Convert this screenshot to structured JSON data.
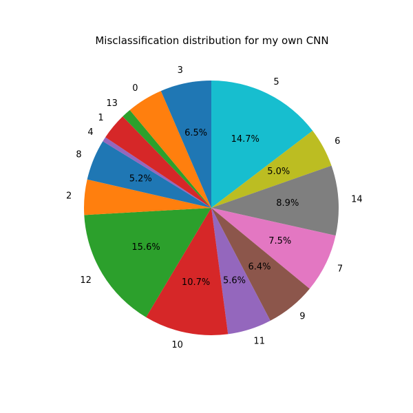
{
  "chart_data": {
    "type": "pie",
    "title": "Misclassification distribution for my own CNN",
    "start_angle_deg": 90,
    "direction": "clockwise",
    "slices": [
      {
        "label": "5",
        "value": 14.7,
        "pct_label": "14.7%",
        "color": "#17becf"
      },
      {
        "label": "6",
        "value": 5.0,
        "pct_label": "5.0%",
        "color": "#bcbd22"
      },
      {
        "label": "14",
        "value": 8.9,
        "pct_label": "8.9%",
        "color": "#7f7f7f"
      },
      {
        "label": "7",
        "value": 7.5,
        "pct_label": "7.5%",
        "color": "#e377c2"
      },
      {
        "label": "9",
        "value": 6.4,
        "pct_label": "6.4%",
        "color": "#8c564b"
      },
      {
        "label": "11",
        "value": 5.6,
        "pct_label": "5.6%",
        "color": "#9467bd"
      },
      {
        "label": "10",
        "value": 10.7,
        "pct_label": "10.7%",
        "color": "#d62728"
      },
      {
        "label": "12",
        "value": 15.6,
        "pct_label": "15.6%",
        "color": "#2ca02c"
      },
      {
        "label": "2",
        "value": 4.5,
        "pct_label": "",
        "color": "#ff7f0e"
      },
      {
        "label": "8",
        "value": 5.2,
        "pct_label": "5.2%",
        "color": "#1f77b4"
      },
      {
        "label": "4",
        "value": 0.6,
        "pct_label": "",
        "color": "#9467bd"
      },
      {
        "label": "1",
        "value": 3.4,
        "pct_label": "",
        "color": "#d62728"
      },
      {
        "label": "13",
        "value": 1.2,
        "pct_label": "",
        "color": "#2ca02c"
      },
      {
        "label": "0",
        "value": 4.6,
        "pct_label": "",
        "color": "#ff7f0e"
      },
      {
        "label": "3",
        "value": 6.5,
        "pct_label": "6.5%",
        "color": "#1f77b4"
      }
    ]
  }
}
